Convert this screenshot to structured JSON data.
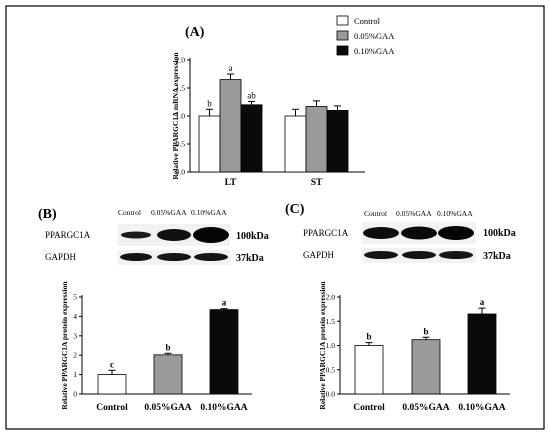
{
  "panels": {
    "a_label": "(A)",
    "b_label": "(B)",
    "c_label": "(C)"
  },
  "legend": {
    "items": [
      {
        "label": "Control",
        "color": "#ffffff"
      },
      {
        "label": "0.05%GAA",
        "color": "#9a9a9a"
      },
      {
        "label": "0.10%GAA",
        "color": "#0a0a0a"
      }
    ]
  },
  "blots": {
    "b": {
      "columns": [
        "Control",
        "0.05%GAA",
        "0.10%GAA"
      ],
      "rows": [
        {
          "label": "PPARGC1A",
          "size": "100kDa"
        },
        {
          "label": "GAPDH",
          "size": "37kDa"
        }
      ]
    },
    "c": {
      "columns": [
        "Control",
        "0.05%GAA",
        "0.10%GAA"
      ],
      "rows": [
        {
          "label": "PPARGC1A",
          "size": "100kDa"
        },
        {
          "label": "GAPDH",
          "size": "37kDa"
        }
      ]
    }
  },
  "chart_data": [
    {
      "id": "A",
      "type": "bar",
      "title": "(A)",
      "ylabel": "Relative PPARGC1A mRNA expression",
      "xlabel": "",
      "categories": [
        "LT",
        "ST"
      ],
      "ylim": [
        0,
        2.0
      ],
      "yticks": [
        "0.0",
        "0.5",
        "1.0",
        "1.5",
        "2.0"
      ],
      "series": [
        {
          "name": "Control",
          "color": "#ffffff",
          "values": [
            1.0,
            1.0
          ],
          "errors": [
            0.12,
            0.12
          ],
          "letters": [
            "b",
            ""
          ]
        },
        {
          "name": "0.05%GAA",
          "color": "#9a9a9a",
          "values": [
            1.65,
            1.17
          ],
          "errors": [
            0.1,
            0.1
          ],
          "letters": [
            "a",
            ""
          ]
        },
        {
          "name": "0.10%GAA",
          "color": "#0a0a0a",
          "values": [
            1.2,
            1.1
          ],
          "errors": [
            0.06,
            0.08
          ],
          "letters": [
            "ab",
            ""
          ]
        }
      ]
    },
    {
      "id": "B",
      "type": "bar",
      "title": "(B)",
      "ylabel": "Relative PPARGC1A protein expression",
      "categories": [
        "Control",
        "0.05%GAA",
        "0.10%GAA"
      ],
      "colors": [
        "#ffffff",
        "#9a9a9a",
        "#0a0a0a"
      ],
      "values": [
        1.0,
        2.02,
        4.35
      ],
      "errors": [
        0.22,
        0.08,
        0.05
      ],
      "letters": [
        "c",
        "b",
        "a"
      ],
      "ylim": [
        0,
        5
      ],
      "yticks": [
        "0",
        "1",
        "2",
        "3",
        "4",
        "5"
      ]
    },
    {
      "id": "C",
      "type": "bar",
      "title": "(C)",
      "ylabel": "Relative PPARGC1A protein expression",
      "categories": [
        "Control",
        "0.05%GAA",
        "0.10%GAA"
      ],
      "colors": [
        "#ffffff",
        "#9a9a9a",
        "#0a0a0a"
      ],
      "values": [
        1.0,
        1.12,
        1.65
      ],
      "errors": [
        0.06,
        0.05,
        0.12
      ],
      "letters": [
        "b",
        "b",
        "a"
      ],
      "ylim": [
        0,
        2.0
      ],
      "yticks": [
        "0.0",
        "0.5",
        "1.0",
        "1.5",
        "2.0"
      ]
    }
  ]
}
